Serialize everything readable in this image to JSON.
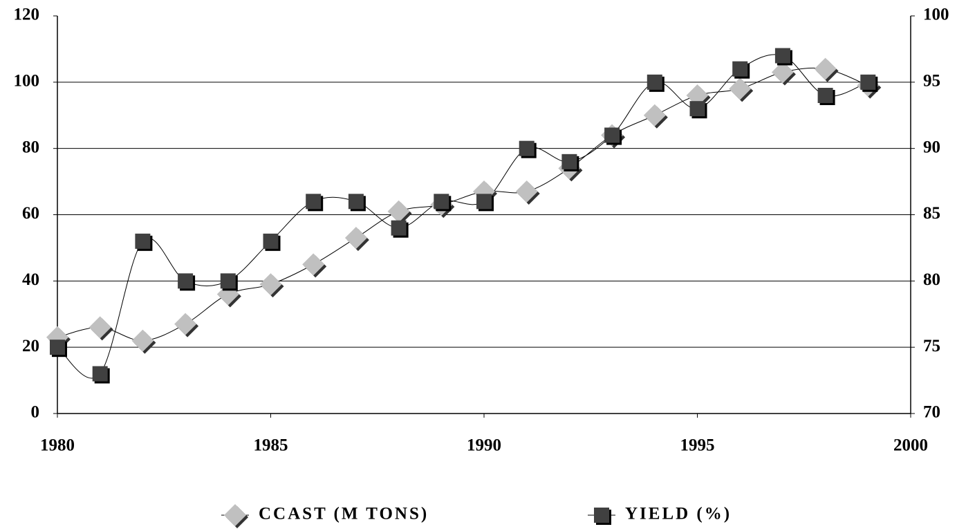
{
  "chart_data": {
    "type": "line",
    "x": [
      1980,
      1981,
      1982,
      1983,
      1984,
      1985,
      1986,
      1987,
      1988,
      1989,
      1990,
      1991,
      1992,
      1993,
      1994,
      1995,
      1996,
      1997,
      1998,
      1999
    ],
    "xlim": [
      1980,
      2000
    ],
    "xticks": [
      1980,
      1985,
      1990,
      1995,
      2000
    ],
    "ylim": [
      0,
      120
    ],
    "yticks": [
      0,
      20,
      40,
      60,
      80,
      100,
      120
    ],
    "y2lim": [
      70,
      100
    ],
    "y2ticks": [
      70,
      75,
      80,
      85,
      90,
      95,
      100
    ],
    "grid": true,
    "legend": "bottom",
    "series": [
      {
        "name": "CCAST (M TONS)",
        "color": "#c0c0c0",
        "marker": "diamond",
        "values": [
          23,
          26,
          22,
          27,
          36,
          39,
          45,
          53,
          61,
          63,
          67,
          67,
          74,
          84,
          90,
          96,
          98,
          103,
          104,
          99
        ]
      },
      {
        "name": "YIELD (%)",
        "color": "#404040",
        "marker": "square",
        "axis": "y2",
        "values": [
          75,
          73,
          83,
          80,
          80,
          83,
          86,
          86,
          84,
          86,
          86,
          90,
          89,
          91,
          95,
          93,
          96,
          97,
          94,
          95
        ]
      }
    ]
  }
}
